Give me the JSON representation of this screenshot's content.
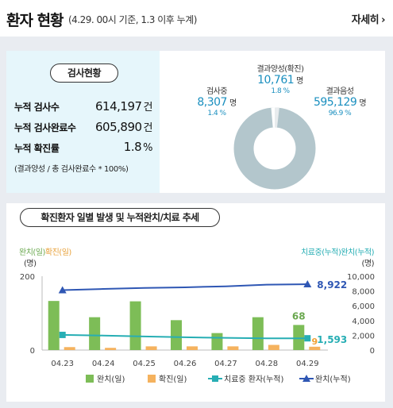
{
  "header": {
    "title": "환자 현황",
    "subtitle": "(4.29. 00시 기준, 1.3 이후 누계)",
    "more_label": "자세히",
    "more_icon": "chevron-right-icon"
  },
  "test_status": {
    "pill": "검사현황",
    "rows": [
      {
        "label": "누적 검사수",
        "value": "614,197",
        "unit": "건"
      },
      {
        "label": "누적 검사완료수",
        "value": "605,890",
        "unit": "건"
      },
      {
        "label": "누적 확진률",
        "value": "1.8",
        "unit": "%"
      }
    ],
    "note": "(결과양성 / 총 검사완료수 * 100%)"
  },
  "donut": {
    "testing": {
      "label": "검사중",
      "value": "8,307",
      "unit": "명",
      "pct": "1.4 %"
    },
    "positive": {
      "label": "결과양성(확진)",
      "value": "10,761",
      "unit": "명",
      "pct": "1.8 %"
    },
    "negative": {
      "label": "결과음성",
      "value": "595,129",
      "unit": "명",
      "pct": "96.9 %"
    },
    "colors": {
      "negative": "#b3c6cc",
      "positive": "#e8ecee",
      "testing": "#ffffff"
    }
  },
  "trend": {
    "pill": "확진환자 일별 발생 및 누적완치/치료 추세",
    "left_axis_label_a": "완치(일)",
    "left_axis_label_b": "확진(일)",
    "left_axis_unit": "(명)",
    "right_axis_label": "치료중(누적)완치(누적)",
    "right_axis_unit": "(명)",
    "last_labels": {
      "recovered_daily": "68",
      "confirmed_daily": "9",
      "recovered_cum": "8,922",
      "treating_cum": "1,593"
    }
  },
  "chart_data": {
    "type": "bar",
    "categories": [
      "04.23",
      "04.24",
      "04.25",
      "04.26",
      "04.27",
      "04.28",
      "04.29"
    ],
    "y_left_ticks": [
      "200",
      "0"
    ],
    "y_left_lim": [
      0,
      200
    ],
    "y_right_ticks": [
      "10,000",
      "8,000",
      "6,000",
      "4,000",
      "2,000",
      "0"
    ],
    "y_right_lim": [
      0,
      10000
    ],
    "series": [
      {
        "name": "완치(일)",
        "type": "bar",
        "axis": "left",
        "color": "#7dbd57",
        "values": [
          133,
          89,
          132,
          81,
          46,
          89,
          68
        ]
      },
      {
        "name": "확진(일)",
        "type": "bar",
        "axis": "left",
        "color": "#f5b25e",
        "values": [
          8,
          6,
          10,
          10,
          10,
          14,
          9
        ]
      },
      {
        "name": "치료중 환자(누적)",
        "type": "line",
        "axis": "right",
        "color": "#27aeb4",
        "marker": "square",
        "values": [
          2051,
          1964,
          1843,
          1731,
          1654,
          1582,
          1593
        ]
      },
      {
        "name": "완치(누적)",
        "type": "line",
        "axis": "right",
        "color": "#2f57b4",
        "marker": "triangle",
        "values": [
          8117,
          8277,
          8411,
          8501,
          8635,
          8854,
          8922
        ]
      }
    ],
    "legend": [
      "완치(일)",
      "확진(일)",
      "치료중 환자(누적)",
      "완치(누적)"
    ],
    "legend_position": "bottom",
    "grid": false
  }
}
